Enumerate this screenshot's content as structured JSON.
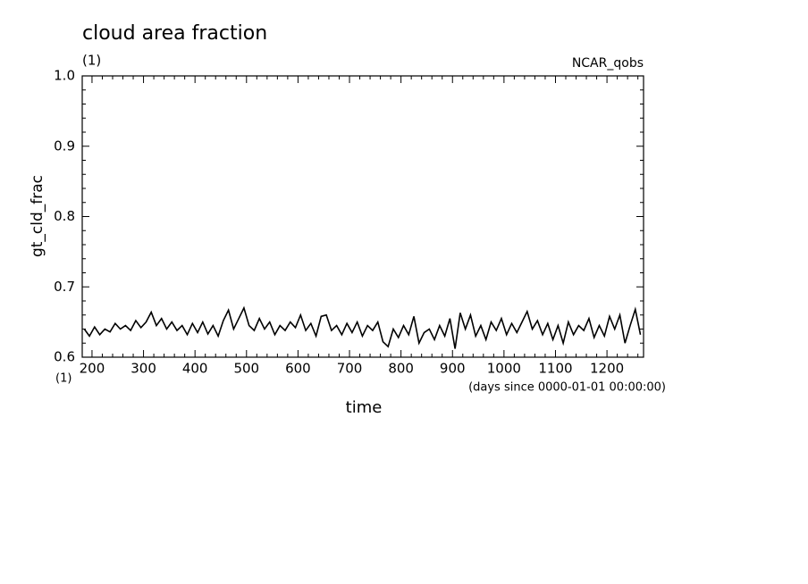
{
  "chart_data": {
    "type": "line",
    "title": "cloud area fraction",
    "subtitle": "(1)",
    "annotations": [
      "NCAR_qobs",
      "(1)",
      "(days since 0000-01-01 00:00:00)"
    ],
    "x_label": "time",
    "y_label": "gt_cld_frac",
    "x": [
      185,
      195,
      205,
      215,
      225,
      235,
      245,
      255,
      265,
      275,
      285,
      295,
      305,
      315,
      325,
      335,
      345,
      355,
      365,
      375,
      385,
      395,
      405,
      415,
      425,
      435,
      445,
      455,
      465,
      475,
      485,
      495,
      505,
      515,
      525,
      535,
      545,
      555,
      565,
      575,
      585,
      595,
      605,
      615,
      625,
      635,
      645,
      655,
      665,
      675,
      685,
      695,
      705,
      715,
      725,
      735,
      745,
      755,
      765,
      775,
      785,
      795,
      805,
      815,
      825,
      835,
      845,
      855,
      865,
      875,
      885,
      895,
      905,
      915,
      925,
      935,
      945,
      955,
      965,
      975,
      985,
      995,
      1005,
      1015,
      1025,
      1035,
      1045,
      1055,
      1065,
      1075,
      1085,
      1095,
      1105,
      1115,
      1125,
      1135,
      1145,
      1155,
      1165,
      1175,
      1185,
      1195,
      1205,
      1215,
      1225,
      1235,
      1245,
      1255,
      1265
    ],
    "series": [
      {
        "name": "gt_cld_frac",
        "color": "#000000",
        "values": [
          0.64,
          0.63,
          0.643,
          0.632,
          0.64,
          0.636,
          0.648,
          0.64,
          0.645,
          0.638,
          0.652,
          0.642,
          0.65,
          0.664,
          0.645,
          0.655,
          0.64,
          0.65,
          0.638,
          0.645,
          0.632,
          0.648,
          0.635,
          0.65,
          0.633,
          0.645,
          0.63,
          0.652,
          0.667,
          0.64,
          0.655,
          0.67,
          0.645,
          0.638,
          0.655,
          0.64,
          0.65,
          0.632,
          0.645,
          0.638,
          0.65,
          0.642,
          0.66,
          0.638,
          0.648,
          0.63,
          0.658,
          0.66,
          0.638,
          0.645,
          0.632,
          0.648,
          0.635,
          0.65,
          0.63,
          0.645,
          0.638,
          0.65,
          0.622,
          0.615,
          0.64,
          0.628,
          0.645,
          0.632,
          0.658,
          0.62,
          0.635,
          0.64,
          0.625,
          0.645,
          0.63,
          0.655,
          0.612,
          0.663,
          0.64,
          0.66,
          0.63,
          0.645,
          0.625,
          0.65,
          0.638,
          0.655,
          0.632,
          0.648,
          0.635,
          0.65,
          0.665,
          0.64,
          0.652,
          0.632,
          0.648,
          0.625,
          0.645,
          0.62,
          0.65,
          0.632,
          0.645,
          0.638,
          0.655,
          0.628,
          0.645,
          0.63,
          0.658,
          0.64,
          0.66,
          0.62,
          0.645,
          0.668,
          0.632
        ]
      }
    ],
    "xlim": [
      181,
      1271
    ],
    "xticks": [
      200,
      300,
      400,
      500,
      600,
      700,
      800,
      900,
      1000,
      1100,
      1200
    ],
    "ylim": [
      0.6,
      1
    ],
    "yticks": [
      0.6,
      0.7,
      0.8,
      0.9,
      {
        "value": 1,
        "label": "1.0"
      }
    ]
  }
}
